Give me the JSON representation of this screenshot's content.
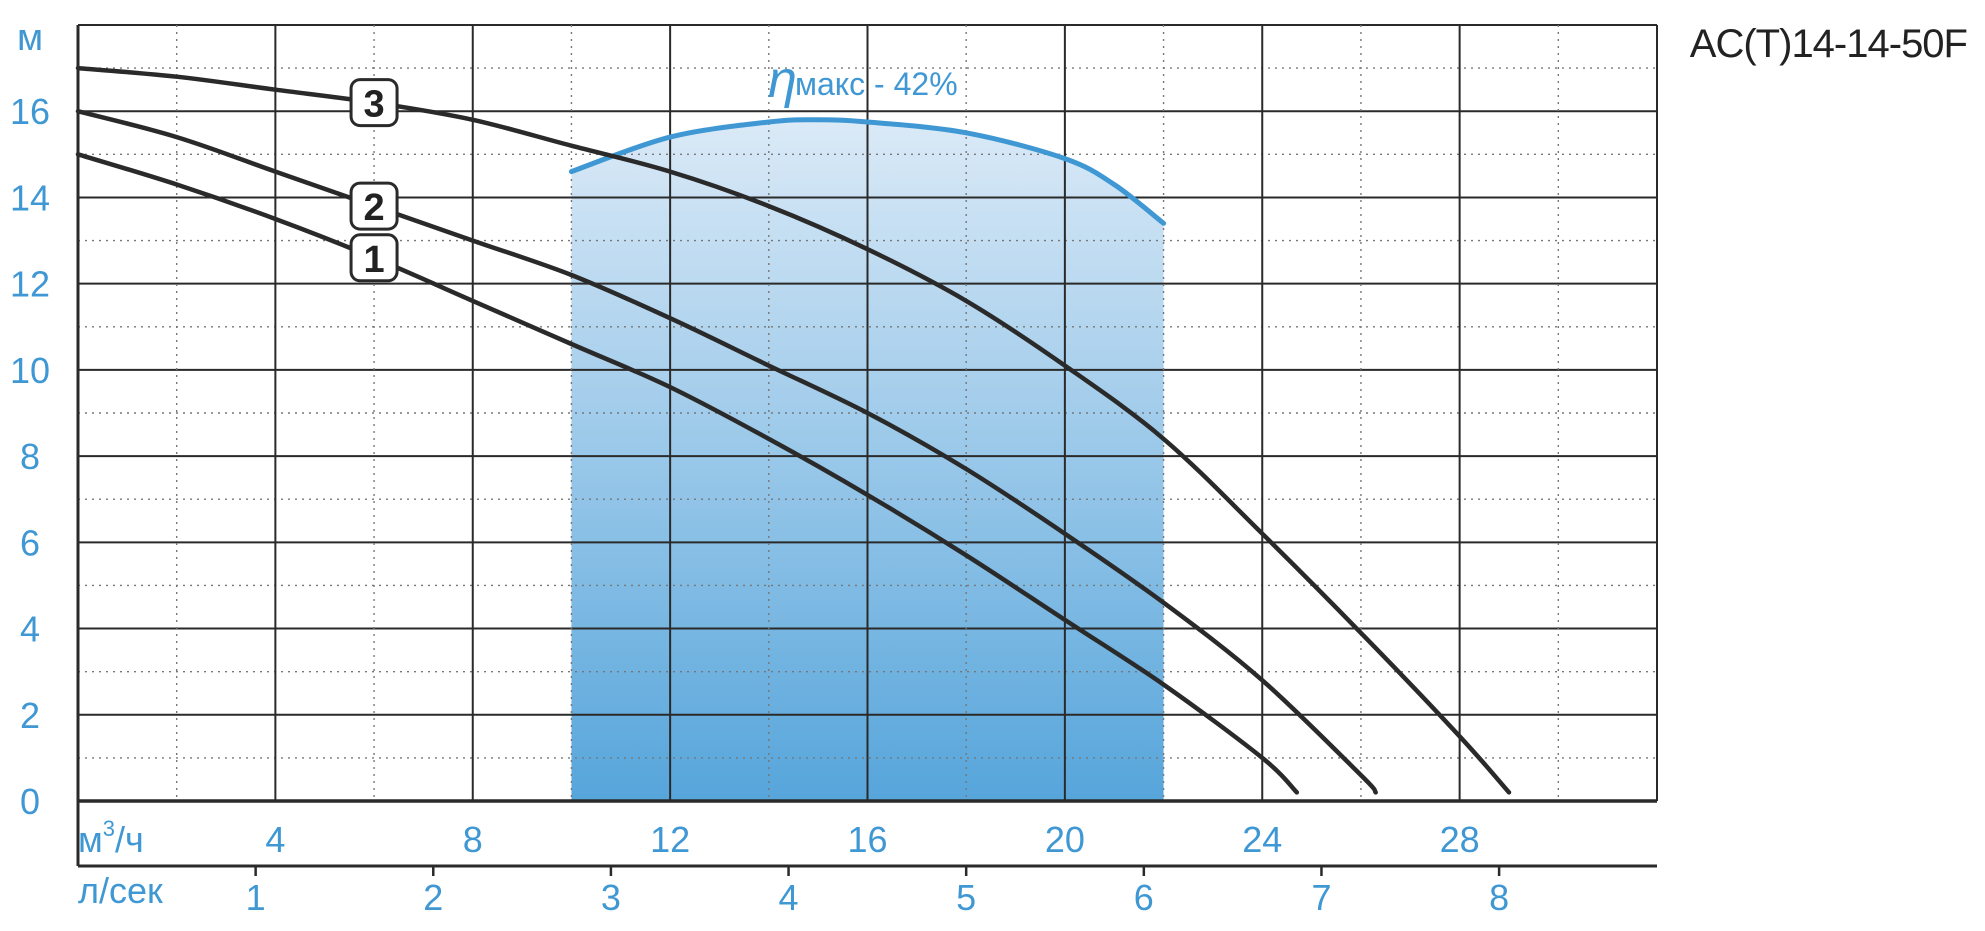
{
  "model": "AC(T)14-14-50F",
  "chart_data": {
    "type": "line",
    "y_unit": "м",
    "x_unit": "м",
    "x_unit_sup": "3",
    "x_unit_suffix": "/ч",
    "x2_unit": "л/сек",
    "xlim": [
      0,
      32
    ],
    "ylim": [
      0,
      18
    ],
    "y_ticks": [
      0,
      2,
      4,
      6,
      8,
      10,
      12,
      14,
      16
    ],
    "x_ticks": [
      4,
      8,
      12,
      16,
      20,
      24,
      28
    ],
    "x2_ticks": [
      1,
      2,
      3,
      4,
      5,
      6,
      7,
      8
    ],
    "grid": true,
    "series": [
      {
        "name": "1",
        "x": [
          0,
          2,
          4,
          6,
          8,
          10,
          12,
          14,
          16,
          18,
          20,
          22,
          24,
          24.7
        ],
        "y": [
          15,
          14.3,
          13.5,
          12.6,
          11.6,
          10.6,
          9.6,
          8.4,
          7.1,
          5.7,
          4.2,
          2.7,
          1.0,
          0.2
        ]
      },
      {
        "name": "2",
        "x": [
          0,
          2,
          4,
          6,
          8,
          10,
          12,
          14,
          16,
          18,
          20,
          22,
          24,
          26,
          26.3
        ],
        "y": [
          16,
          15.4,
          14.6,
          13.8,
          13.0,
          12.2,
          11.2,
          10.1,
          9.0,
          7.7,
          6.2,
          4.6,
          2.8,
          0.6,
          0.2
        ]
      },
      {
        "name": "3",
        "x": [
          0,
          2,
          4,
          6,
          8,
          10,
          12,
          14,
          16,
          18,
          20,
          22,
          24,
          26,
          28,
          29
        ],
        "y": [
          17,
          16.8,
          16.5,
          16.2,
          15.8,
          15.2,
          14.6,
          13.8,
          12.8,
          11.6,
          10.1,
          8.4,
          6.2,
          3.9,
          1.5,
          0.2
        ]
      }
    ],
    "efficiency": {
      "symbol": "η",
      "label": "макс - 42%",
      "x": [
        10,
        12,
        14,
        15,
        16,
        18,
        20,
        21,
        22
      ],
      "y": [
        14.6,
        15.4,
        15.75,
        15.8,
        15.75,
        15.5,
        14.9,
        14.3,
        13.4
      ]
    },
    "operating_range": [
      10,
      22
    ],
    "colors": {
      "curves": "#2a2a2a",
      "accent": "#3f98d3",
      "fill_top": "#dbeaf7",
      "fill_bottom": "#56a5db"
    }
  }
}
